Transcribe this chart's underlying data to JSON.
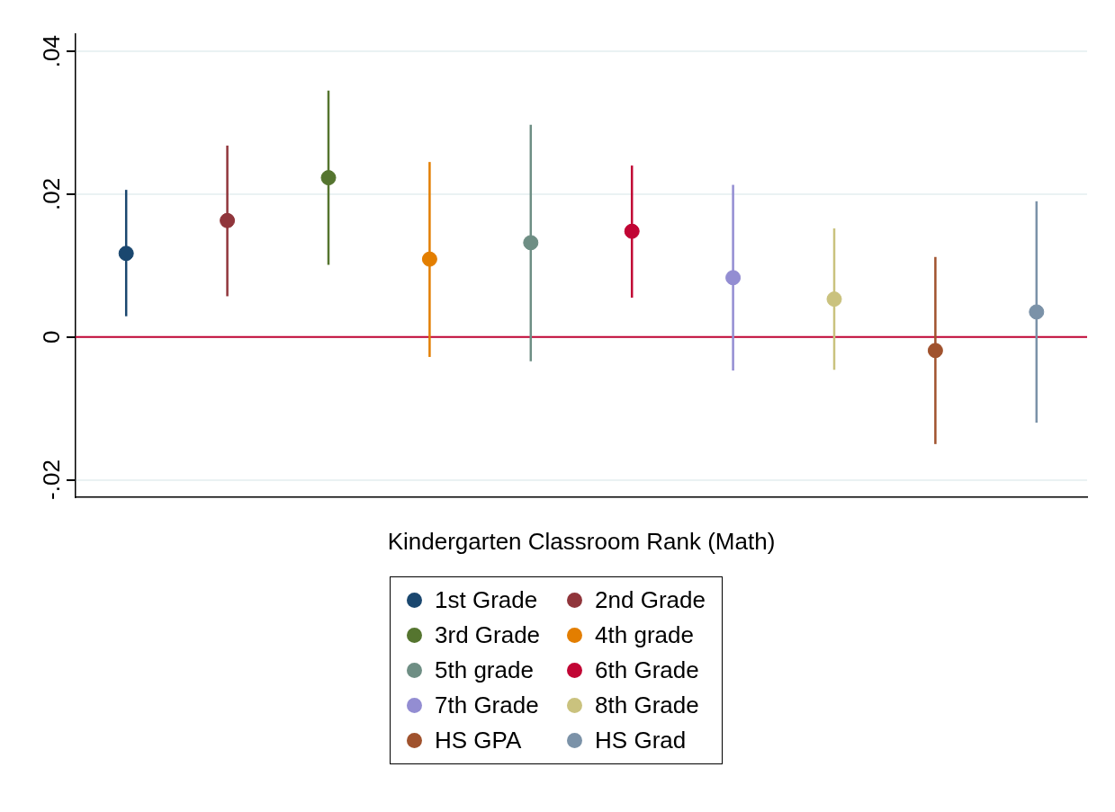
{
  "chart_data": {
    "type": "scatter",
    "xlabel": "Kindergarten Classroom Rank (Math)",
    "categories": [
      null,
      null,
      null,
      null,
      null,
      null,
      null,
      null,
      null,
      null
    ],
    "ylim": [
      -0.0224,
      0.0424
    ],
    "yticks": [
      {
        "value": -0.02,
        "label": "-.02"
      },
      {
        "value": 0,
        "label": "0"
      },
      {
        "value": 0.02,
        "label": ".02"
      },
      {
        "value": 0.04,
        "label": ".04"
      }
    ],
    "grid": "y",
    "legend": "bottom",
    "marker": "circle",
    "ref_lines": [
      {
        "axis": "y",
        "value": 0,
        "label": null,
        "color": "#c10534"
      }
    ],
    "series": [
      {
        "name": "1st Grade",
        "color": "#1a476f",
        "values": [
          0.0117,
          null,
          null,
          null,
          null,
          null,
          null,
          null,
          null,
          null
        ],
        "errors": [
          [
            0.0029,
            0.0206
          ],
          null,
          null,
          null,
          null,
          null,
          null,
          null,
          null,
          null
        ]
      },
      {
        "name": "2nd Grade",
        "color": "#90353b",
        "values": [
          null,
          0.0163,
          null,
          null,
          null,
          null,
          null,
          null,
          null,
          null
        ],
        "errors": [
          null,
          [
            0.0057,
            0.0268
          ],
          null,
          null,
          null,
          null,
          null,
          null,
          null,
          null
        ]
      },
      {
        "name": "3rd Grade",
        "color": "#55752f",
        "values": [
          null,
          null,
          0.0223,
          null,
          null,
          null,
          null,
          null,
          null,
          null
        ],
        "errors": [
          null,
          null,
          [
            0.0101,
            0.0345
          ],
          null,
          null,
          null,
          null,
          null,
          null,
          null
        ]
      },
      {
        "name": "4th grade",
        "color": "#e37e00",
        "values": [
          null,
          null,
          null,
          0.0109,
          null,
          null,
          null,
          null,
          null,
          null
        ],
        "errors": [
          null,
          null,
          null,
          [
            -0.0028,
            0.0245
          ],
          null,
          null,
          null,
          null,
          null,
          null
        ]
      },
      {
        "name": "5th grade",
        "color": "#6e8e84",
        "values": [
          null,
          null,
          null,
          null,
          0.0132,
          null,
          null,
          null,
          null,
          null
        ],
        "errors": [
          null,
          null,
          null,
          null,
          [
            -0.0034,
            0.0297
          ],
          null,
          null,
          null,
          null,
          null
        ]
      },
      {
        "name": "6th Grade",
        "color": "#c10534",
        "values": [
          null,
          null,
          null,
          null,
          null,
          0.0148,
          null,
          null,
          null,
          null
        ],
        "errors": [
          null,
          null,
          null,
          null,
          null,
          [
            0.0055,
            0.024
          ],
          null,
          null,
          null,
          null
        ]
      },
      {
        "name": "7th Grade",
        "color": "#938dd2",
        "values": [
          null,
          null,
          null,
          null,
          null,
          null,
          0.0083,
          null,
          null,
          null
        ],
        "errors": [
          null,
          null,
          null,
          null,
          null,
          null,
          [
            -0.0047,
            0.0213
          ],
          null,
          null,
          null
        ]
      },
      {
        "name": "8th Grade",
        "color": "#cac27e",
        "values": [
          null,
          null,
          null,
          null,
          null,
          null,
          null,
          0.0053,
          null,
          null
        ],
        "errors": [
          null,
          null,
          null,
          null,
          null,
          null,
          null,
          [
            -0.0046,
            0.0152
          ],
          null,
          null
        ]
      },
      {
        "name": "HS GPA",
        "color": "#a0522d",
        "values": [
          null,
          null,
          null,
          null,
          null,
          null,
          null,
          null,
          -0.0019,
          null
        ],
        "errors": [
          null,
          null,
          null,
          null,
          null,
          null,
          null,
          null,
          [
            -0.015,
            0.0112
          ],
          null
        ]
      },
      {
        "name": "HS Grad",
        "color": "#7b92a8",
        "values": [
          null,
          null,
          null,
          null,
          null,
          null,
          null,
          null,
          null,
          0.0035
        ],
        "errors": [
          null,
          null,
          null,
          null,
          null,
          null,
          null,
          null,
          null,
          [
            -0.012,
            0.019
          ]
        ]
      }
    ]
  }
}
